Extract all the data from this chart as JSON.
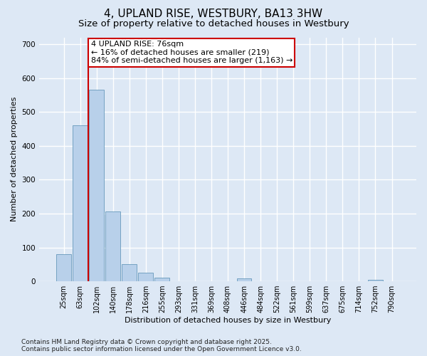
{
  "title": "4, UPLAND RISE, WESTBURY, BA13 3HW",
  "subtitle": "Size of property relative to detached houses in Westbury",
  "xlabel": "Distribution of detached houses by size in Westbury",
  "ylabel": "Number of detached properties",
  "categories": [
    "25sqm",
    "63sqm",
    "102sqm",
    "140sqm",
    "178sqm",
    "216sqm",
    "255sqm",
    "293sqm",
    "331sqm",
    "369sqm",
    "408sqm",
    "446sqm",
    "484sqm",
    "522sqm",
    "561sqm",
    "599sqm",
    "637sqm",
    "675sqm",
    "714sqm",
    "752sqm",
    "790sqm"
  ],
  "bar_values": [
    80,
    460,
    565,
    207,
    50,
    25,
    10,
    0,
    0,
    0,
    0,
    8,
    0,
    0,
    0,
    0,
    0,
    0,
    0,
    4,
    0
  ],
  "bar_color": "#b8d0ea",
  "bar_edge_color": "#6699bb",
  "annotation_text": "4 UPLAND RISE: 76sqm\n← 16% of detached houses are smaller (219)\n84% of semi-detached houses are larger (1,163) →",
  "annotation_box_color": "#ffffff",
  "annotation_box_edge_color": "#cc0000",
  "vline_x_index": 1.5,
  "vline_color": "#cc0000",
  "ylim": [
    0,
    720
  ],
  "yticks": [
    0,
    100,
    200,
    300,
    400,
    500,
    600,
    700
  ],
  "plot_bg_color": "#dde8f5",
  "fig_bg_color": "#dde8f5",
  "grid_color": "#ffffff",
  "footer": "Contains HM Land Registry data © Crown copyright and database right 2025.\nContains public sector information licensed under the Open Government Licence v3.0.",
  "title_fontsize": 11,
  "subtitle_fontsize": 9.5,
  "annotation_fontsize": 8,
  "tick_fontsize": 7,
  "axis_label_fontsize": 8,
  "footer_fontsize": 6.5
}
